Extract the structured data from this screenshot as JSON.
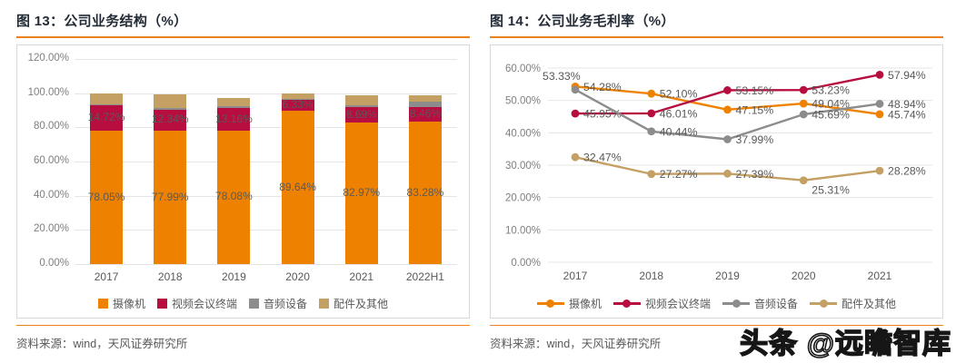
{
  "watermark": "头条 @远瞻智库",
  "figures": [
    {
      "title": "图 13：公司业务结构（%）",
      "source": "资料来源：wind，天风证券研究所"
    },
    {
      "title": "图 14：公司业务毛利率（%）",
      "source": "资料来源：wind，天风证券研究所"
    }
  ],
  "chart_data": [
    {
      "type": "bar",
      "variant": "stacked",
      "title": "公司业务结构（%）",
      "categories": [
        "2017",
        "2018",
        "2019",
        "2020",
        "2021",
        "2022H1"
      ],
      "series": [
        {
          "name": "摄像机",
          "color": "#ee8200",
          "values": [
            78.05,
            77.99,
            78.08,
            89.64,
            82.97,
            83.28
          ],
          "labels": [
            "78.05%",
            "77.99%",
            "78.08%",
            "89.64%",
            "82.97%",
            "83.28%"
          ]
        },
        {
          "name": "视频会议终端",
          "color": "#b70d3f",
          "values": [
            14.72,
            12.34,
            13.16,
            6.33,
            8.69,
            8.46
          ],
          "labels": [
            "14.72%",
            "12.34%",
            "13.16%",
            "6.33%",
            "8.69%",
            "8.46%"
          ]
        },
        {
          "name": "音频设备",
          "color": "#8c8c8c",
          "values": [
            0.6,
            1.0,
            1.4,
            0.7,
            1.5,
            3.2
          ],
          "labels": null
        },
        {
          "name": "配件及其他",
          "color": "#c5a064",
          "values": [
            6.6,
            8.1,
            4.4,
            3.3,
            5.8,
            3.9
          ],
          "labels": null
        }
      ],
      "ylim": [
        0,
        120
      ],
      "ytick_step": 20,
      "yticks": [
        "120.00%",
        "100.00%",
        "80.00%",
        "60.00%",
        "40.00%",
        "20.00%",
        "0.00%"
      ],
      "grid": true,
      "legend_position": "bottom"
    },
    {
      "type": "line",
      "title": "公司业务毛利率（%）",
      "categories": [
        "2017",
        "2018",
        "2019",
        "2020",
        "2021"
      ],
      "series": [
        {
          "name": "摄像机",
          "color": "#ee8200",
          "values": [
            54.28,
            52.1,
            47.15,
            49.04,
            45.74
          ],
          "labels": [
            "54.28%",
            "52.10%",
            "47.15%",
            "49.04%",
            "45.74%"
          ]
        },
        {
          "name": "视频会议终端",
          "color": "#b70d3f",
          "values": [
            45.95,
            46.01,
            53.15,
            53.23,
            57.94
          ],
          "labels": [
            "45.95%",
            "46.01%",
            "53.15%",
            "53.23%",
            "57.94%"
          ]
        },
        {
          "name": "音频设备",
          "color": "#8c8c8c",
          "values": [
            53.33,
            40.44,
            37.99,
            45.69,
            48.94
          ],
          "labels": [
            "53.33%",
            "40.44%",
            "37.99%",
            "45.69%",
            "48.94%"
          ]
        },
        {
          "name": "配件及其他",
          "color": "#c5a064",
          "values": [
            32.47,
            27.27,
            27.39,
            25.31,
            28.28
          ],
          "labels": [
            "32.47%",
            "27.27%",
            "27.39%",
            "25.31%",
            "28.28%"
          ]
        }
      ],
      "ylim": [
        0,
        60
      ],
      "ytick_step": 10,
      "yticks": [
        "60.00%",
        "50.00%",
        "40.00%",
        "30.00%",
        "20.00%",
        "10.00%",
        "0.00%"
      ],
      "grid": true,
      "legend_position": "bottom",
      "label_offsets": {
        "2,0": [
          -36,
          -11
        ],
        "3,3": [
          9,
          15
        ]
      }
    }
  ]
}
